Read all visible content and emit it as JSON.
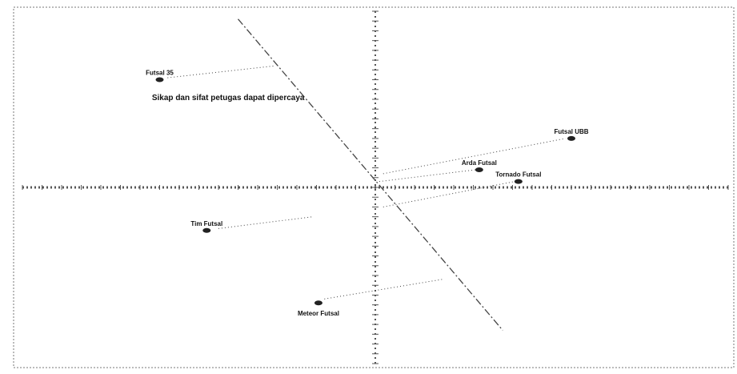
{
  "chart_data": {
    "type": "scatter",
    "xlim": [
      -1.8,
      1.8
    ],
    "ylim": [
      -0.9,
      0.9
    ],
    "grid": false,
    "legend": "none",
    "colors": {
      "axis": "#555555",
      "border": "#777777",
      "vector": "#444444",
      "point": "#222222",
      "text": "#111111"
    },
    "points": [
      {
        "label": "Futsal 35",
        "x": -1.1,
        "y": 0.55,
        "label_pos": "above"
      },
      {
        "label": "Futsal UBB",
        "x": 1.0,
        "y": 0.25,
        "label_pos": "above"
      },
      {
        "label": "Arda Futsal",
        "x": 0.53,
        "y": 0.09,
        "label_pos": "above"
      },
      {
        "label": "Tornado Futsal",
        "x": 0.73,
        "y": 0.03,
        "label_pos": "above"
      },
      {
        "label": "Tim Futsal",
        "x": -0.86,
        "y": -0.22,
        "label_pos": "above"
      },
      {
        "label": "Meteor Futsal",
        "x": -0.29,
        "y": -0.59,
        "label_pos": "below"
      }
    ],
    "vectors": [
      {
        "label": "Sikap dan sifat petugas dapat dipercaya",
        "from": [
          -0.7,
          0.86
        ],
        "to": [
          0.65,
          -0.73
        ]
      }
    ],
    "connectors": [
      {
        "from": [
          -1.06,
          0.56
        ],
        "to": [
          -0.52,
          0.62
        ]
      },
      {
        "from": [
          0.04,
          0.07
        ],
        "to": [
          0.97,
          0.25
        ]
      },
      {
        "from": [
          0.02,
          0.03
        ],
        "to": [
          0.51,
          0.09
        ]
      },
      {
        "from": [
          0.04,
          -0.1
        ],
        "to": [
          0.71,
          0.03
        ]
      },
      {
        "from": [
          -0.8,
          -0.21
        ],
        "to": [
          -0.32,
          -0.15
        ]
      },
      {
        "from": [
          -0.26,
          -0.57
        ],
        "to": [
          0.34,
          -0.47
        ]
      }
    ]
  }
}
